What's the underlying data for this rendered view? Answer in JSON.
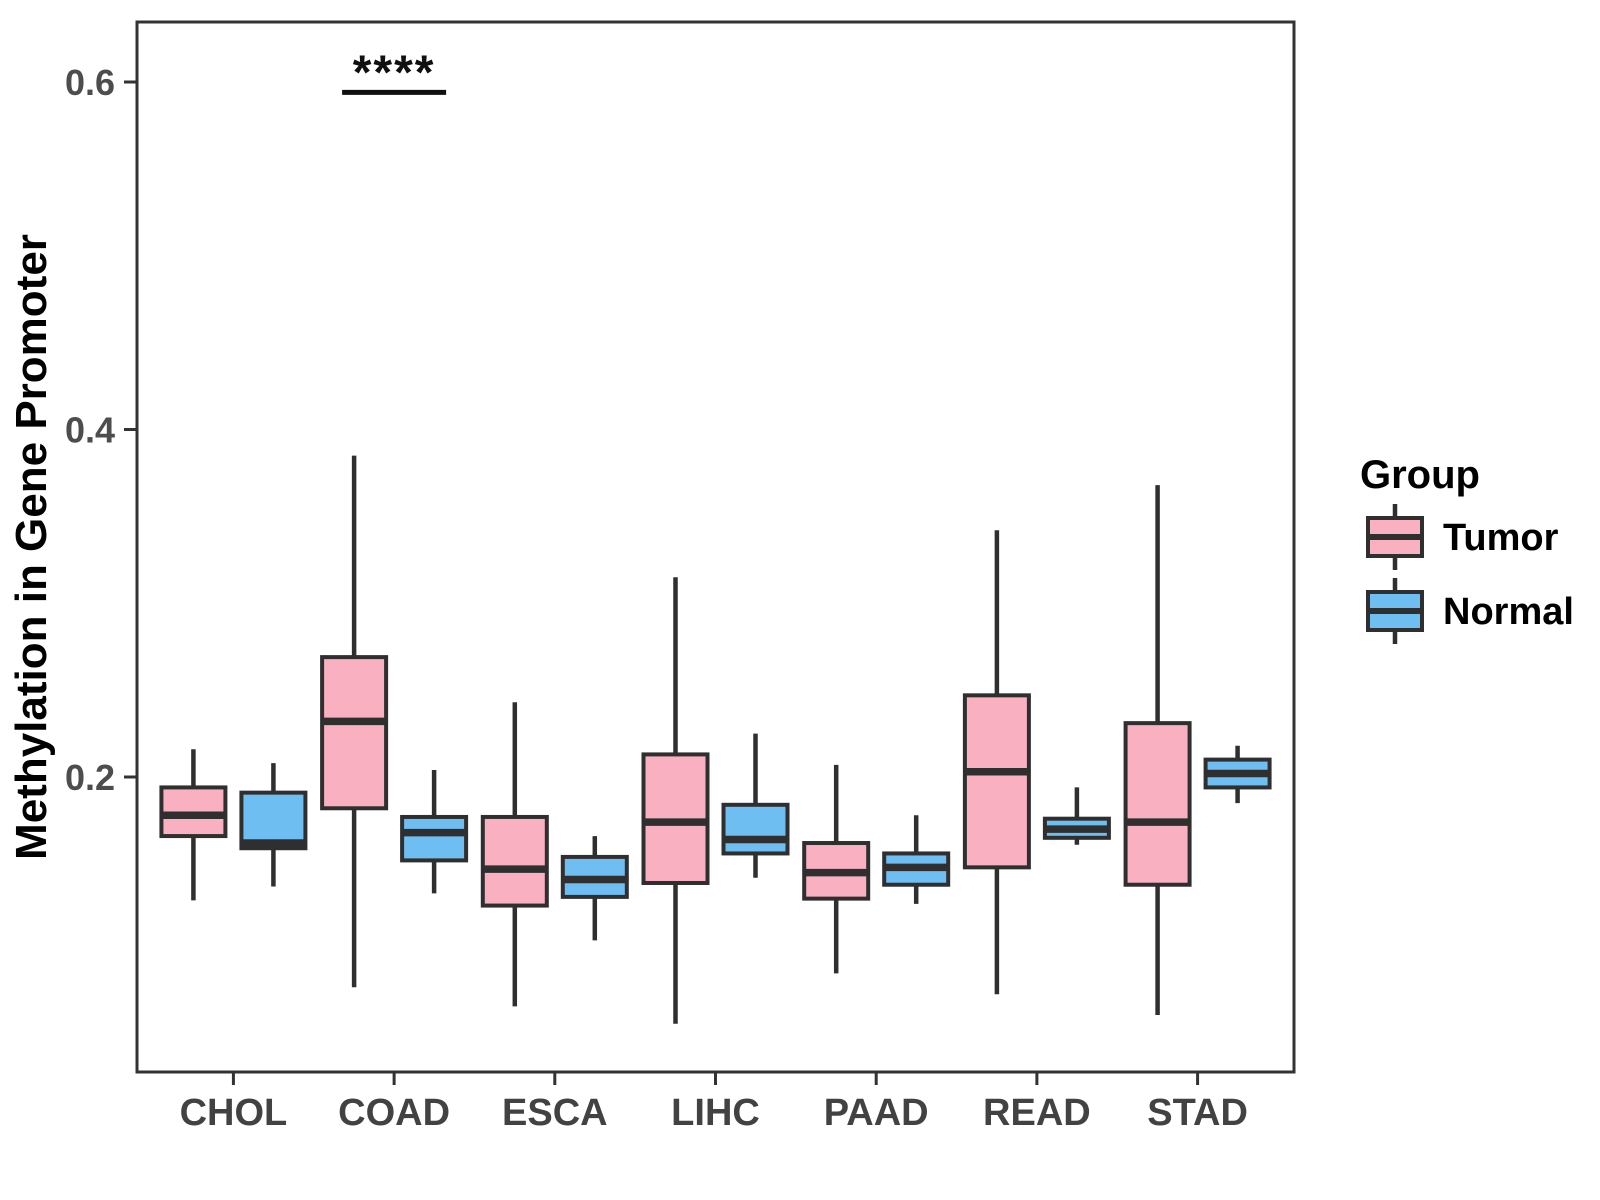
{
  "figure": {
    "ylabel": "Methylation in Gene Promoter",
    "legend_title": "Group",
    "significance_label": "****"
  },
  "chart_data": {
    "type": "boxplot",
    "title": "",
    "xlabel": "",
    "ylabel": "Methylation in Gene Promoter",
    "categories": [
      "CHOL",
      "COAD",
      "ESCA",
      "LIHC",
      "PAAD",
      "READ",
      "STAD"
    ],
    "y_ticks": [
      0.2,
      0.4,
      0.6
    ],
    "y_tick_labels": [
      "0.2",
      "0.4",
      "0.6"
    ],
    "ylim": [
      0.03,
      0.635
    ],
    "grid": false,
    "legend_position": "right",
    "legend_title": "Group",
    "groups": [
      {
        "name": "Tumor",
        "fill": "#F9B0C0"
      },
      {
        "name": "Normal",
        "fill": "#6FBEF2"
      }
    ],
    "stroke_color": "#2F2F2F",
    "series": [
      {
        "name": "Tumor",
        "boxes": [
          {
            "category": "CHOL",
            "low": 0.129,
            "q1": 0.166,
            "median": 0.178,
            "q3": 0.194,
            "high": 0.216
          },
          {
            "category": "COAD",
            "low": 0.079,
            "q1": 0.182,
            "median": 0.232,
            "q3": 0.269,
            "high": 0.385
          },
          {
            "category": "ESCA",
            "low": 0.068,
            "q1": 0.126,
            "median": 0.147,
            "q3": 0.177,
            "high": 0.243
          },
          {
            "category": "LIHC",
            "low": 0.058,
            "q1": 0.139,
            "median": 0.174,
            "q3": 0.213,
            "high": 0.315
          },
          {
            "category": "PAAD",
            "low": 0.087,
            "q1": 0.13,
            "median": 0.145,
            "q3": 0.162,
            "high": 0.207
          },
          {
            "category": "READ",
            "low": 0.075,
            "q1": 0.148,
            "median": 0.203,
            "q3": 0.247,
            "high": 0.342
          },
          {
            "category": "STAD",
            "low": 0.063,
            "q1": 0.138,
            "median": 0.174,
            "q3": 0.231,
            "high": 0.368
          }
        ]
      },
      {
        "name": "Normal",
        "boxes": [
          {
            "category": "CHOL",
            "low": 0.137,
            "q1": 0.159,
            "median": 0.162,
            "q3": 0.191,
            "high": 0.208
          },
          {
            "category": "COAD",
            "low": 0.133,
            "q1": 0.152,
            "median": 0.168,
            "q3": 0.177,
            "high": 0.204
          },
          {
            "category": "ESCA",
            "low": 0.106,
            "q1": 0.131,
            "median": 0.141,
            "q3": 0.154,
            "high": 0.166
          },
          {
            "category": "LIHC",
            "low": 0.142,
            "q1": 0.156,
            "median": 0.164,
            "q3": 0.184,
            "high": 0.225
          },
          {
            "category": "PAAD",
            "low": 0.127,
            "q1": 0.138,
            "median": 0.148,
            "q3": 0.156,
            "high": 0.178
          },
          {
            "category": "READ",
            "low": 0.161,
            "q1": 0.165,
            "median": 0.17,
            "q3": 0.176,
            "high": 0.194
          },
          {
            "category": "STAD",
            "low": 0.185,
            "q1": 0.194,
            "median": 0.202,
            "q3": 0.21,
            "high": 0.218
          }
        ]
      }
    ],
    "annotations": [
      {
        "text": "****",
        "category": "COAD",
        "bar_y": 0.594,
        "spans": [
          "Tumor",
          "Normal"
        ]
      }
    ]
  }
}
